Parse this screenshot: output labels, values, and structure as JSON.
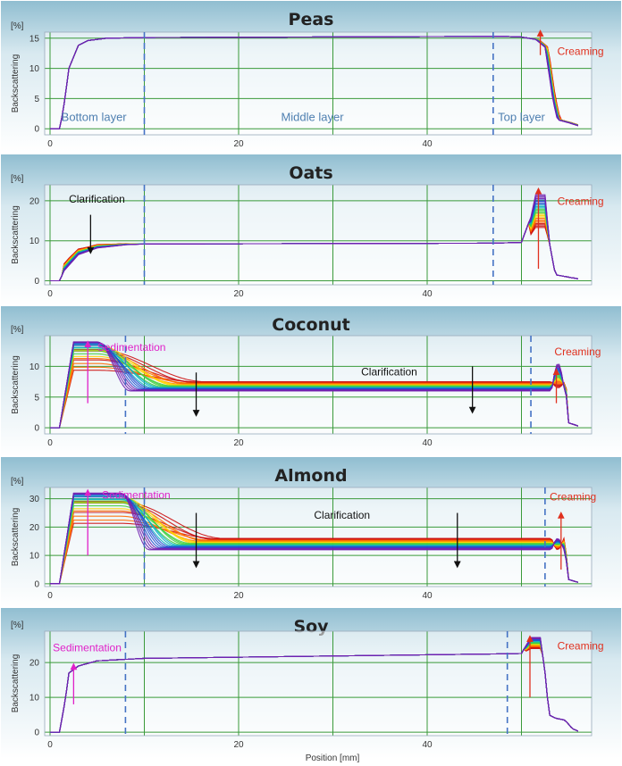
{
  "chart_data": {
    "type": "line",
    "xlabel": "Position [mm]",
    "xlim": [
      0,
      56
    ],
    "xticks": [
      0,
      20,
      40
    ],
    "xgrid": [
      0,
      10,
      20,
      30,
      40,
      50
    ],
    "grid": true,
    "colors": {
      "bg_top": "#8fbdd0",
      "bg_bottom": "#ffffff",
      "grid": "#3a9a3a",
      "divider": "#4472c4",
      "creaming": "#e0301e",
      "sedimentation": "#e020c8",
      "clarification": "#111111",
      "layer_label": "#4e7fb0",
      "profile_colors": [
        "#cc1010",
        "#ff6a00",
        "#ffd200",
        "#44d040",
        "#10b4c0",
        "#2050d0",
        "#7020b0"
      ]
    },
    "panels": [
      {
        "title": "Peas",
        "unit": "[%]",
        "ylabel": "Backscattering",
        "ylim": [
          -1,
          16
        ],
        "yticks": [
          0,
          5,
          10,
          15
        ],
        "dividers": [
          10,
          47
        ],
        "baseline": [
          [
            0,
            0
          ],
          [
            1,
            0
          ],
          [
            1.4,
            3
          ],
          [
            2,
            10
          ],
          [
            3,
            13.8
          ],
          [
            4,
            14.6
          ],
          [
            6,
            15
          ],
          [
            10,
            15.1
          ],
          [
            48,
            15.3
          ],
          [
            50,
            15.2
          ],
          [
            51.5,
            14.8
          ]
        ],
        "tail": [
          [
            51.5,
            14.8
          ],
          [
            52.5,
            13.5
          ],
          [
            53.3,
            5
          ],
          [
            53.8,
            1.5
          ],
          [
            55,
            1
          ],
          [
            56,
            0.5
          ]
        ],
        "tail_spread": 0.8,
        "tail_spread_y": 1.2,
        "spread_points": [],
        "annotations": [
          {
            "text": "Bottom layer",
            "x": 1.2,
            "y": 1.3,
            "kind": "layer"
          },
          {
            "text": "Middle layer",
            "x": 24.5,
            "y": 1.3,
            "kind": "layer"
          },
          {
            "text": "Top layer",
            "x": 47.5,
            "y": 1.3,
            "kind": "layer"
          },
          {
            "text": "Creaming",
            "x": 53.8,
            "y": 12.2,
            "kind": "creaming"
          }
        ],
        "arrows": [
          {
            "x": 52,
            "y1": 12.2,
            "y2": 16.2,
            "kind": "creaming"
          }
        ]
      },
      {
        "title": "Oats",
        "unit": "[%]",
        "ylabel": "Backscattering",
        "ylim": [
          -1,
          24
        ],
        "yticks": [
          0,
          10,
          20
        ],
        "dividers": [
          10,
          47
        ],
        "baseline": [
          [
            0,
            0
          ],
          [
            1,
            0
          ],
          [
            1.5,
            2.5
          ],
          [
            3,
            6.5
          ],
          [
            5,
            8.2
          ],
          [
            8,
            9
          ],
          [
            10,
            9.2
          ],
          [
            47,
            9.4
          ],
          [
            50,
            9.6
          ],
          [
            51,
            16
          ],
          [
            51.5,
            21.5
          ],
          [
            52.5,
            21.5
          ],
          [
            53,
            9
          ],
          [
            53.6,
            1.5
          ],
          [
            56,
            0.5
          ]
        ],
        "fan": {
          "x0": 1.5,
          "x1": 10,
          "top_offset": [
            [
              2,
              2
            ],
            [
              4,
              1.2
            ],
            [
              7,
              0.5
            ],
            [
              10,
              0
            ]
          ]
        },
        "peak": {
          "x0": 50.8,
          "x1": 53,
          "min": 9.5,
          "max": 21.5
        },
        "spread_points": [],
        "annotations": [
          {
            "text": "Clarification",
            "x": 2,
            "y": 19.5,
            "kind": "clarification"
          },
          {
            "text": "Creaming",
            "x": 53.8,
            "y": 19,
            "kind": "creaming"
          }
        ],
        "arrows": [
          {
            "x": 4.3,
            "y1": 16.5,
            "y2": 7,
            "kind": "clarification"
          },
          {
            "x": 51.8,
            "y1": 3,
            "y2": 23,
            "kind": "creaming"
          }
        ]
      },
      {
        "title": "Coconut",
        "unit": "[%]",
        "ylabel": "Backscattering",
        "ylim": [
          -1,
          15
        ],
        "yticks": [
          0,
          5,
          10
        ],
        "dividers": [
          8,
          51
        ],
        "sed": {
          "rise_x": [
            0.6,
            2.5
          ],
          "hi": 14,
          "lo": 7.5,
          "fall_x": [
            5,
            8.5
          ],
          "plateau_hi": 7.5,
          "plateau_lo": 6
        },
        "peak": {
          "x0": 53.2,
          "x1": 54.7,
          "min": 6.5,
          "max": 10.5
        },
        "end": [
          [
            55,
            0.8
          ],
          [
            56,
            0.3
          ]
        ],
        "annotations": [
          {
            "text": "Sedimentation",
            "x": 5,
            "y": 12.5,
            "kind": "sedimentation"
          },
          {
            "text": "Clarification",
            "x": 33,
            "y": 8.5,
            "kind": "clarification"
          },
          {
            "text": "Creaming",
            "x": 53.5,
            "y": 11.8,
            "kind": "creaming"
          }
        ],
        "arrows": [
          {
            "x": 4,
            "y1": 4,
            "y2": 14,
            "kind": "sedimentation"
          },
          {
            "x": 15.5,
            "y1": 9,
            "y2": 2,
            "kind": "clarification"
          },
          {
            "x": 44.8,
            "y1": 10,
            "y2": 2.5,
            "kind": "clarification"
          },
          {
            "x": 53.7,
            "y1": 4,
            "y2": 9.5,
            "kind": "creaming"
          }
        ]
      },
      {
        "title": "Almond",
        "unit": "[%]",
        "ylabel": "Backscattering",
        "ylim": [
          -1,
          34
        ],
        "yticks": [
          0,
          10,
          20,
          30
        ],
        "dividers": [
          10,
          52.5
        ],
        "sed": {
          "rise_x": [
            0.6,
            2.5
          ],
          "hi": 32,
          "lo": 17,
          "fall_x": [
            7.5,
            10.5
          ],
          "plateau_hi": 16,
          "plateau_lo": 12
        },
        "peak": {
          "x0": 53.2,
          "x1": 54.6,
          "min": 12,
          "max": 16
        },
        "end": [
          [
            55,
            1.5
          ],
          [
            56,
            0.5
          ]
        ],
        "annotations": [
          {
            "text": "Sedimentation",
            "x": 5.5,
            "y": 30,
            "kind": "sedimentation"
          },
          {
            "text": "Clarification",
            "x": 28,
            "y": 23,
            "kind": "clarification"
          },
          {
            "text": "Creaming",
            "x": 53,
            "y": 29.5,
            "kind": "creaming"
          }
        ],
        "arrows": [
          {
            "x": 4,
            "y1": 10,
            "y2": 33,
            "kind": "sedimentation"
          },
          {
            "x": 15.5,
            "y1": 25,
            "y2": 6,
            "kind": "clarification"
          },
          {
            "x": 43.2,
            "y1": 25,
            "y2": 6,
            "kind": "clarification"
          },
          {
            "x": 54.2,
            "y1": 5,
            "y2": 25,
            "kind": "creaming"
          }
        ]
      },
      {
        "title": "Soy",
        "unit": "[%]",
        "ylabel": "Backscattering",
        "ylim": [
          -1,
          29
        ],
        "yticks": [
          0,
          10,
          20
        ],
        "dividers": [
          8,
          48.5
        ],
        "baseline": [
          [
            0,
            0
          ],
          [
            1,
            0
          ],
          [
            1.6,
            9
          ],
          [
            2,
            17
          ],
          [
            3,
            19
          ],
          [
            5,
            20.5
          ],
          [
            10,
            21.2
          ],
          [
            48,
            22.5
          ],
          [
            50,
            22.6
          ],
          [
            50.5,
            25
          ],
          [
            51,
            27.2
          ],
          [
            52,
            27.2
          ],
          [
            52.6,
            15
          ],
          [
            52.9,
            5
          ],
          [
            53.6,
            4
          ],
          [
            54.6,
            3.5
          ],
          [
            55.4,
            1
          ],
          [
            56,
            0.3
          ]
        ],
        "peak": {
          "x0": 50.3,
          "x1": 52.3,
          "min": 22.5,
          "max": 27.2
        },
        "spread_points": [],
        "annotations": [
          {
            "text": "Sedimentation",
            "x": 0.3,
            "y": 23.2,
            "kind": "sedimentation"
          },
          {
            "text": "Creaming",
            "x": 53.8,
            "y": 23.8,
            "kind": "creaming"
          }
        ],
        "arrows": [
          {
            "x": 2.5,
            "y1": 8,
            "y2": 19.5,
            "kind": "sedimentation"
          },
          {
            "x": 50.9,
            "y1": 10,
            "y2": 27.5,
            "kind": "creaming"
          }
        ]
      }
    ]
  }
}
